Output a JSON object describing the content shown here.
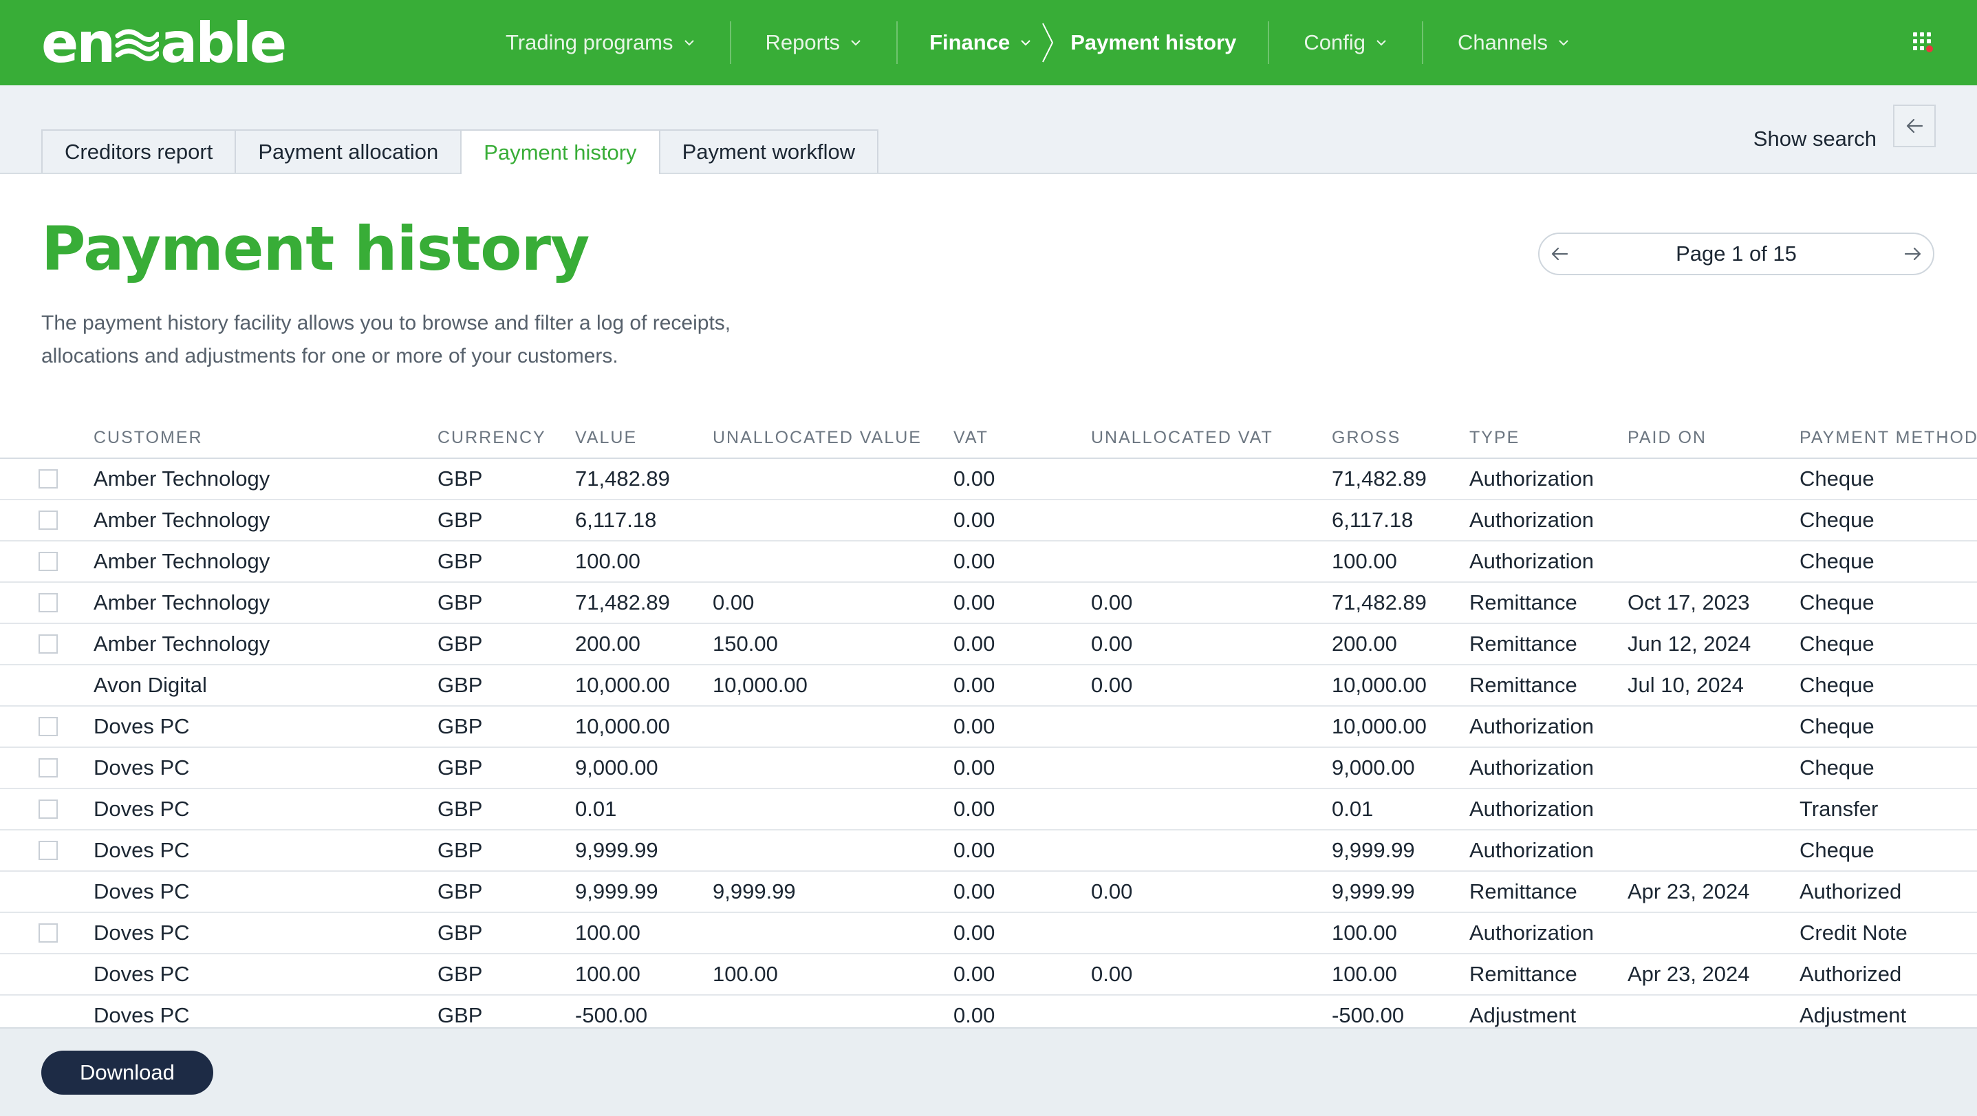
{
  "brand": {
    "name": "enable"
  },
  "nav": {
    "items": [
      {
        "label": "Trading programs"
      },
      {
        "label": "Reports"
      },
      {
        "label": "Finance"
      },
      {
        "label": "Config"
      },
      {
        "label": "Channels"
      }
    ],
    "current_page": "Payment history"
  },
  "tabs": [
    {
      "label": "Creditors report",
      "active": false
    },
    {
      "label": "Payment allocation",
      "active": false
    },
    {
      "label": "Payment history",
      "active": true
    },
    {
      "label": "Payment workflow",
      "active": false
    }
  ],
  "search": {
    "toggle_label": "Show search"
  },
  "page": {
    "title": "Payment history",
    "description": "The payment history facility allows you to browse and filter a log of receipts, allocations and adjustments for one or more of your customers."
  },
  "pagination": {
    "label": "Page 1 of 15"
  },
  "table": {
    "columns": [
      "CUSTOMER",
      "CURRENCY",
      "VALUE",
      "UNALLOCATED VALUE",
      "VAT",
      "UNALLOCATED VAT",
      "GROSS",
      "TYPE",
      "PAID ON",
      "PAYMENT METHOD"
    ],
    "rows": [
      {
        "checkbox": true,
        "cells": [
          "Amber Technology",
          "GBP",
          "71,482.89",
          "",
          "0.00",
          "",
          "71,482.89",
          "Authorization",
          "",
          "Cheque"
        ]
      },
      {
        "checkbox": true,
        "cells": [
          "Amber Technology",
          "GBP",
          "6,117.18",
          "",
          "0.00",
          "",
          "6,117.18",
          "Authorization",
          "",
          "Cheque"
        ]
      },
      {
        "checkbox": true,
        "cells": [
          "Amber Technology",
          "GBP",
          "100.00",
          "",
          "0.00",
          "",
          "100.00",
          "Authorization",
          "",
          "Cheque"
        ]
      },
      {
        "checkbox": true,
        "cells": [
          "Amber Technology",
          "GBP",
          "71,482.89",
          "0.00",
          "0.00",
          "0.00",
          "71,482.89",
          "Remittance",
          "Oct 17, 2023",
          "Cheque"
        ]
      },
      {
        "checkbox": true,
        "cells": [
          "Amber Technology",
          "GBP",
          "200.00",
          "150.00",
          "0.00",
          "0.00",
          "200.00",
          "Remittance",
          "Jun 12, 2024",
          "Cheque"
        ]
      },
      {
        "checkbox": false,
        "cells": [
          "Avon Digital",
          "GBP",
          "10,000.00",
          "10,000.00",
          "0.00",
          "0.00",
          "10,000.00",
          "Remittance",
          "Jul 10, 2024",
          "Cheque"
        ]
      },
      {
        "checkbox": true,
        "cells": [
          "Doves PC",
          "GBP",
          "10,000.00",
          "",
          "0.00",
          "",
          "10,000.00",
          "Authorization",
          "",
          "Cheque"
        ]
      },
      {
        "checkbox": true,
        "cells": [
          "Doves PC",
          "GBP",
          "9,000.00",
          "",
          "0.00",
          "",
          "9,000.00",
          "Authorization",
          "",
          "Cheque"
        ]
      },
      {
        "checkbox": true,
        "cells": [
          "Doves PC",
          "GBP",
          "0.01",
          "",
          "0.00",
          "",
          "0.01",
          "Authorization",
          "",
          "Transfer"
        ]
      },
      {
        "checkbox": true,
        "cells": [
          "Doves PC",
          "GBP",
          "9,999.99",
          "",
          "0.00",
          "",
          "9,999.99",
          "Authorization",
          "",
          "Cheque"
        ]
      },
      {
        "checkbox": false,
        "cells": [
          "Doves PC",
          "GBP",
          "9,999.99",
          "9,999.99",
          "0.00",
          "0.00",
          "9,999.99",
          "Remittance",
          "Apr 23, 2024",
          "Authorized"
        ]
      },
      {
        "checkbox": true,
        "cells": [
          "Doves PC",
          "GBP",
          "100.00",
          "",
          "0.00",
          "",
          "100.00",
          "Authorization",
          "",
          "Credit Note"
        ]
      },
      {
        "checkbox": false,
        "cells": [
          "Doves PC",
          "GBP",
          "100.00",
          "100.00",
          "0.00",
          "0.00",
          "100.00",
          "Remittance",
          "Apr 23, 2024",
          "Authorized"
        ]
      },
      {
        "checkbox": false,
        "cells": [
          "Doves PC",
          "GBP",
          "-500.00",
          "",
          "0.00",
          "",
          "-500.00",
          "Adjustment",
          "",
          "Adjustment"
        ]
      }
    ]
  },
  "footer": {
    "download_label": "Download"
  },
  "colors": {
    "brand_green": "#38ad37",
    "navy_button": "#1d2b45",
    "page_bg": "#edf1f5"
  },
  "icons": {
    "apps": "grid-apps-icon",
    "notification": "red-dot-badge"
  }
}
